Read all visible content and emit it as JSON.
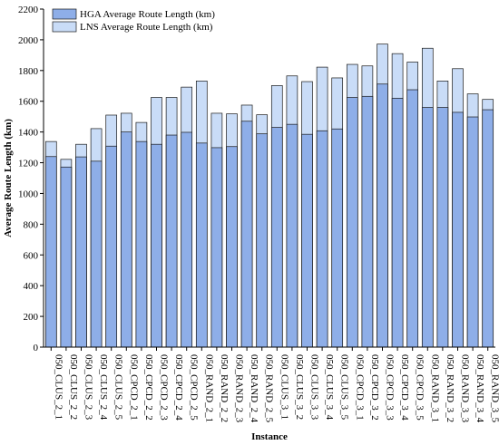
{
  "chart_data": {
    "type": "bar",
    "xlabel": "Instance",
    "ylabel": "Average Route Length (km)",
    "ylim": [
      0,
      2200
    ],
    "yticks": [
      0,
      200,
      400,
      600,
      800,
      1000,
      1200,
      1400,
      1600,
      1800,
      2000,
      2200
    ],
    "grid": false,
    "legend_position": "top-left",
    "categories": [
      "050_CLUS_2_1",
      "050_CLUS_2_2",
      "050_CLUS_2_3",
      "050_CLUS_2_4",
      "050_CLUS_2_5",
      "050_CPCD_2_1",
      "050_CPCD_2_2",
      "050_CPCD_2_3",
      "050_CPCD_2_4",
      "050_CPCD_2_5",
      "050_RAND_2_1",
      "050_RAND_2_2",
      "050_RAND_2_3",
      "050_RAND_2_4",
      "050_RAND_2_5",
      "050_CLUS_3_1",
      "050_CLUS_3_2",
      "050_CLUS_3_3",
      "050_CLUS_3_4",
      "050_CLUS_3_5",
      "050_CPCD_3_1",
      "050_CPCD_3_2",
      "050_CPCD_3_3",
      "050_CPCD_3_4",
      "050_CPCD_3_5",
      "050_RAND_3_1",
      "050_RAND_3_2",
      "050_RAND_3_3",
      "050_RAND_3_4",
      "050_RAND_3_5"
    ],
    "series": [
      {
        "name": "LNS Average Route Length (km)",
        "color": "#c9dcf7",
        "values": [
          1338,
          1222,
          1320,
          1422,
          1510,
          1522,
          1462,
          1625,
          1625,
          1692,
          1732,
          1522,
          1518,
          1575,
          1512,
          1702,
          1765,
          1728,
          1822,
          1752,
          1840,
          1830,
          1972,
          1910,
          1855,
          1945,
          1732,
          1812,
          1648,
          1612
        ]
      },
      {
        "name": "HGA Average Route Length (km)",
        "color": "#8eaee8",
        "values": [
          1240,
          1172,
          1238,
          1210,
          1308,
          1400,
          1338,
          1320,
          1380,
          1398,
          1328,
          1298,
          1305,
          1470,
          1388,
          1430,
          1450,
          1385,
          1408,
          1420,
          1625,
          1632,
          1712,
          1620,
          1675,
          1560,
          1560,
          1528,
          1498,
          1545
        ]
      }
    ]
  }
}
